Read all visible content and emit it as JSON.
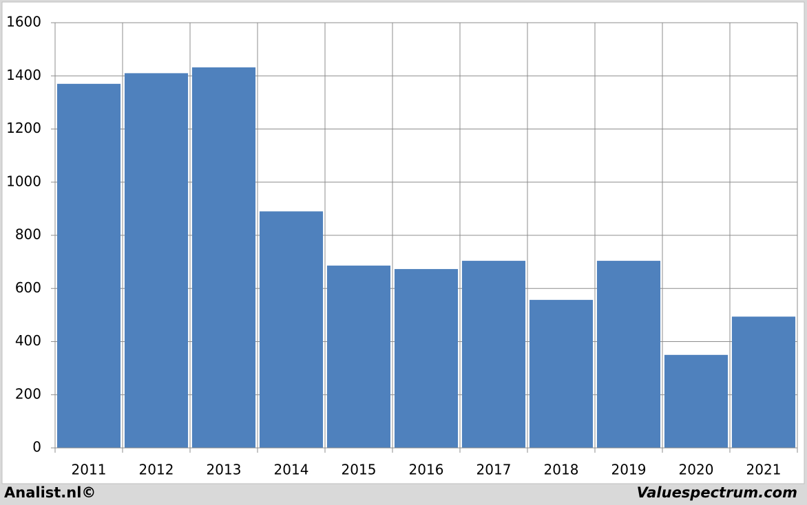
{
  "chart_data": {
    "type": "bar",
    "categories": [
      "2011",
      "2012",
      "2013",
      "2014",
      "2015",
      "2016",
      "2017",
      "2018",
      "2019",
      "2020",
      "2021"
    ],
    "values": [
      1370,
      1410,
      1432,
      890,
      686,
      673,
      704,
      557,
      704,
      350,
      494
    ],
    "color": "#4f81bd",
    "ylim": [
      0,
      1600
    ],
    "yticks": [
      0,
      200,
      400,
      600,
      800,
      1000,
      1200,
      1400,
      1600
    ],
    "grid": true,
    "credits": [
      "Analist.nl©",
      "Valuespectrum.com"
    ]
  }
}
